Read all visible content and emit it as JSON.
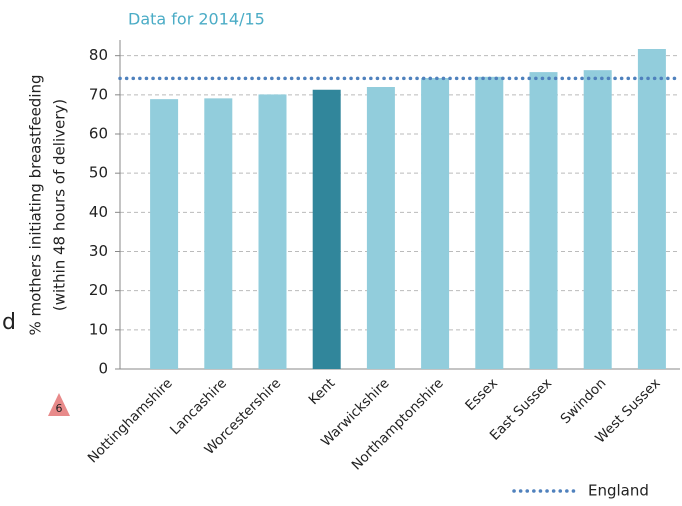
{
  "chart_data": {
    "type": "bar",
    "title": "Data for 2014/15",
    "ylabel": [
      "% mothers initiating breastfeeding",
      "(within 48 hours of delivery)"
    ],
    "categories": [
      "Nottinghamshire",
      "Lancashire",
      "Worcestershire",
      "Kent",
      "Warwickshire",
      "Northamptonshire",
      "Essex",
      "East Sussex",
      "Swindon",
      "West Sussex"
    ],
    "values": [
      68.9,
      69.1,
      70.1,
      71.3,
      72.0,
      74.3,
      74.6,
      75.8,
      76.3,
      81.7
    ],
    "colors": [
      "#92cddc",
      "#92cddc",
      "#92cddc",
      "#31869b",
      "#92cddc",
      "#92cddc",
      "#92cddc",
      "#92cddc",
      "#92cddc",
      "#92cddc"
    ],
    "reference": {
      "name": "England",
      "value": 74.2,
      "color": "#4f81bd"
    },
    "ylim": [
      0,
      84
    ],
    "yticks": [
      0,
      10,
      20,
      30,
      40,
      50,
      60,
      70,
      80
    ],
    "grid": true
  },
  "fragments": {
    "left_text": "d",
    "badge": "6"
  }
}
